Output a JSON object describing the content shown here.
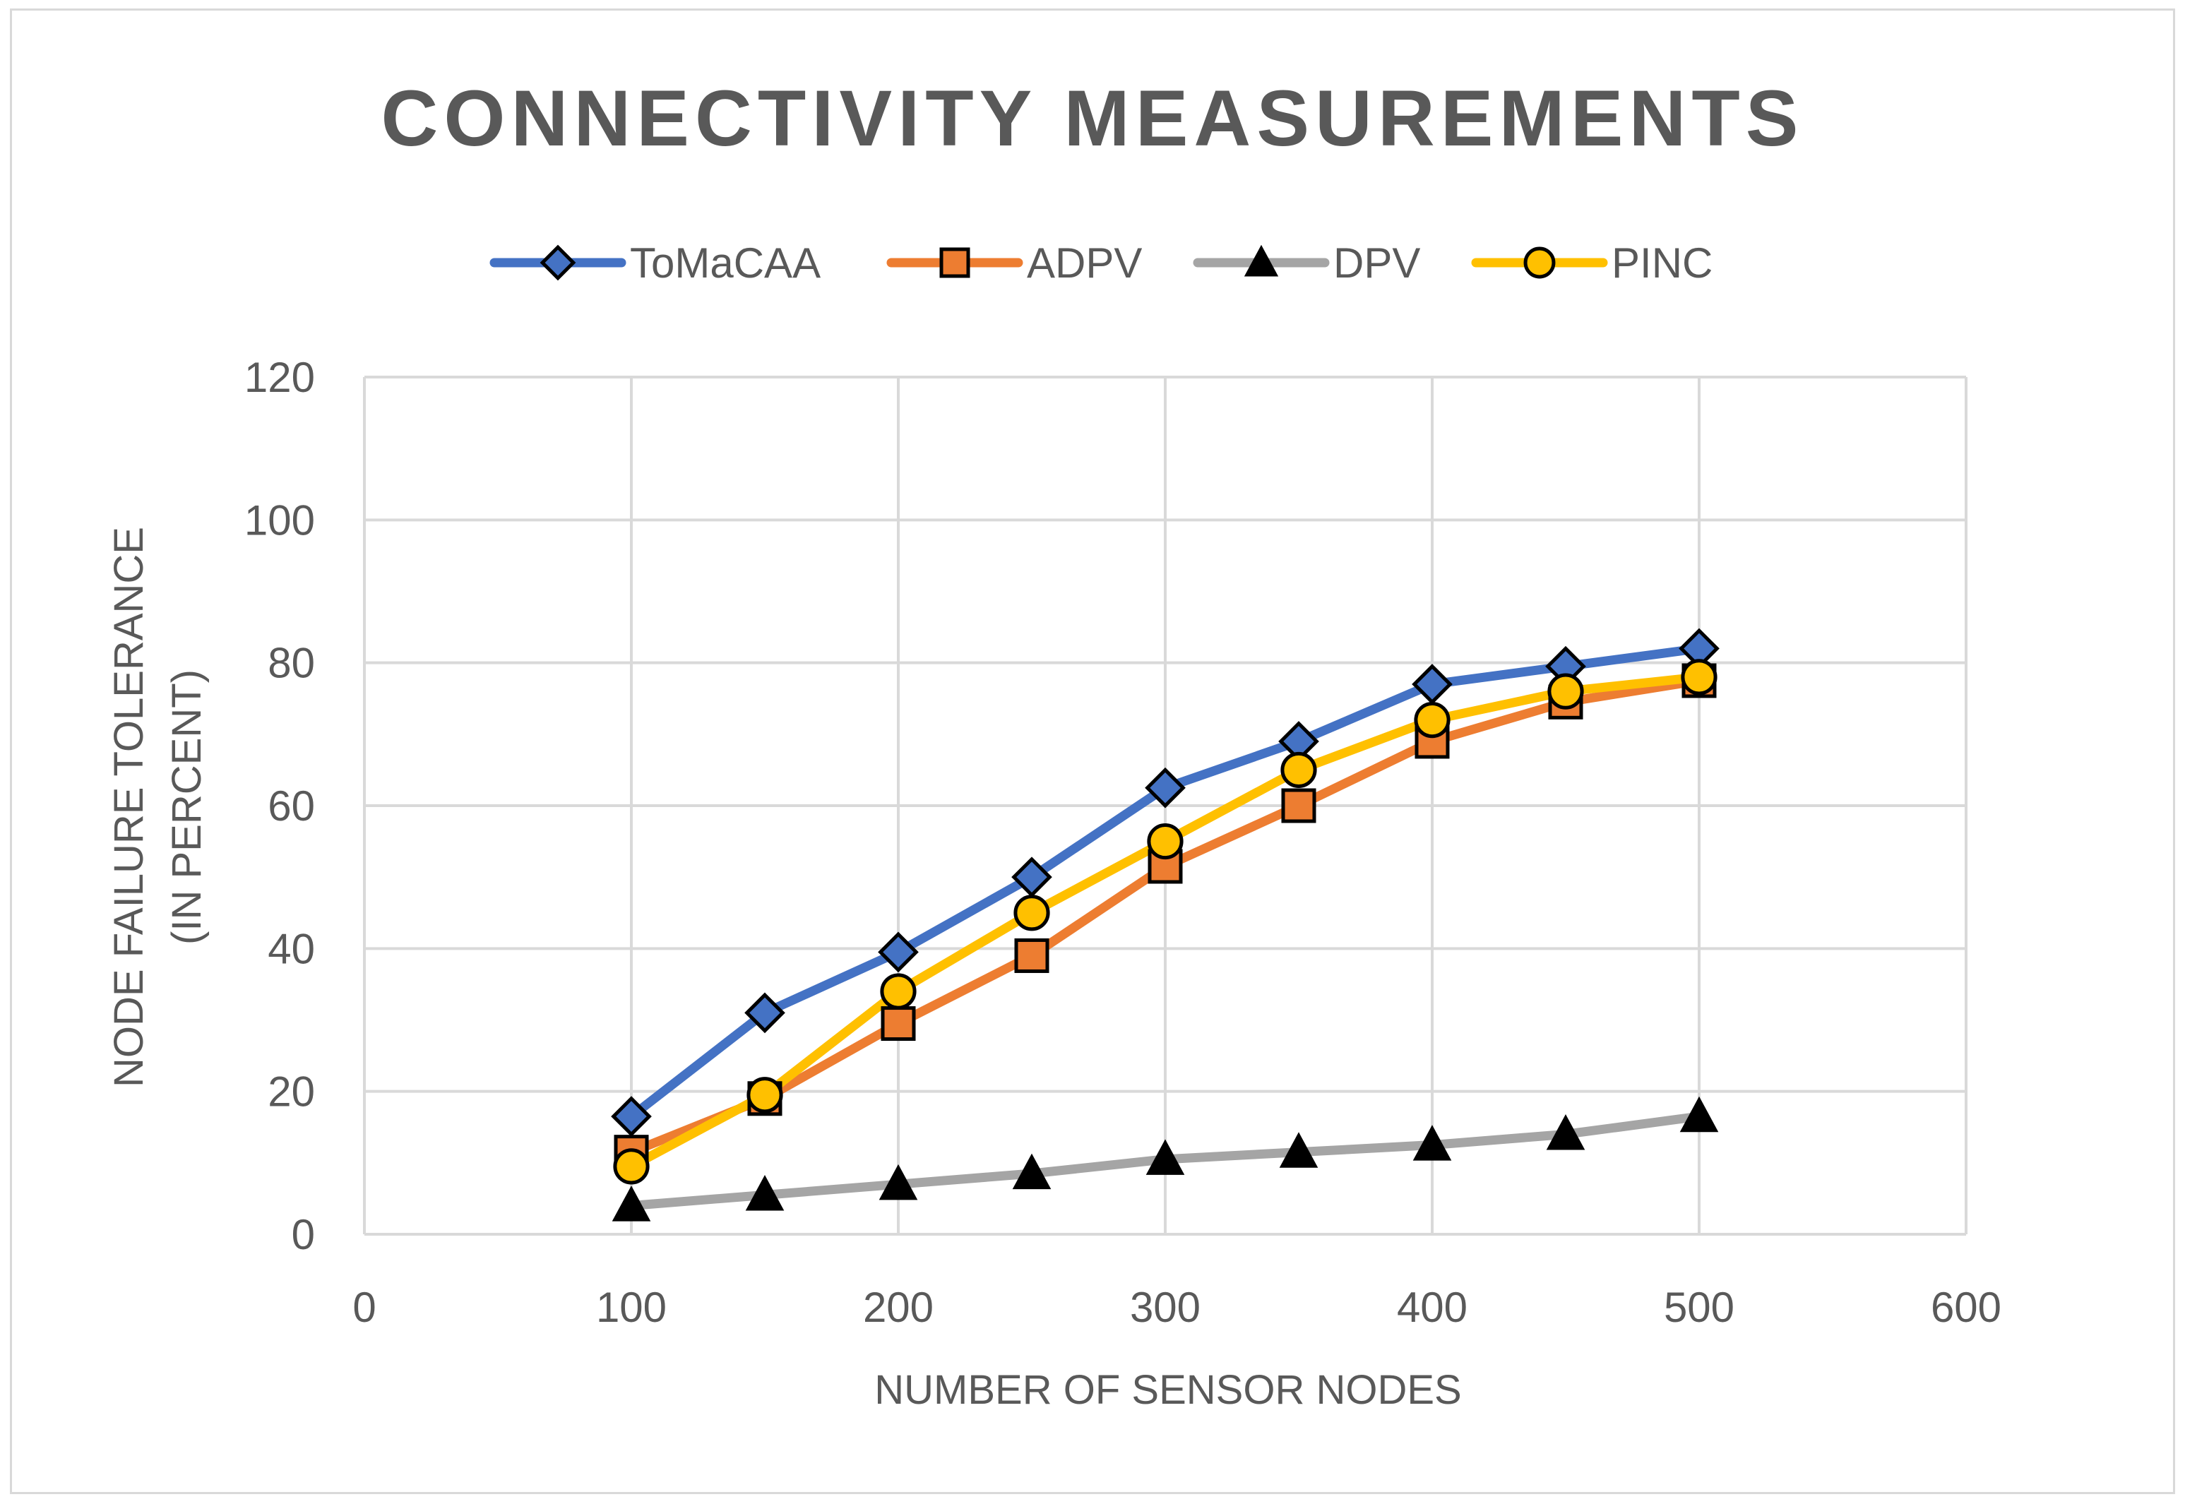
{
  "chart_data": {
    "type": "line",
    "title": "CONNECTIVITY MEASUREMENTS",
    "xlabel": "NUMBER OF SENSOR NODES",
    "ylabel": [
      "NODE FAILURE TOLERANCE",
      "(IN PERCENT)"
    ],
    "xlim": [
      0,
      600
    ],
    "ylim": [
      0,
      120
    ],
    "xticks": [
      0,
      100,
      200,
      300,
      400,
      500,
      600
    ],
    "yticks": [
      0,
      20,
      40,
      60,
      80,
      100,
      120
    ],
    "grid": true,
    "legend_position": "top-center",
    "x": [
      100,
      150,
      200,
      250,
      300,
      350,
      400,
      450,
      500
    ],
    "series": [
      {
        "name": "ToMaCAA",
        "color": "#4472c4",
        "marker": "diamond",
        "marker_color": "#4472c4",
        "values": [
          16.5,
          31,
          39.5,
          50,
          62.5,
          69,
          77,
          79.5,
          82
        ]
      },
      {
        "name": "ADPV",
        "color": "#ed7d31",
        "marker": "square",
        "marker_color": "#ed7d31",
        "values": [
          11.5,
          19,
          29.5,
          39,
          51.5,
          60,
          69,
          74.5,
          77.5
        ]
      },
      {
        "name": "DPV",
        "color": "#a5a5a5",
        "marker": "triangle",
        "marker_color": "#000000",
        "values": [
          4,
          5.5,
          7,
          8.5,
          10.5,
          11.5,
          12.5,
          14,
          16.5
        ]
      },
      {
        "name": "PINC",
        "color": "#ffc000",
        "marker": "circle",
        "marker_color": "#ffc000",
        "values": [
          9.5,
          19.5,
          34,
          45,
          55,
          65,
          72,
          76,
          78
        ]
      }
    ]
  }
}
